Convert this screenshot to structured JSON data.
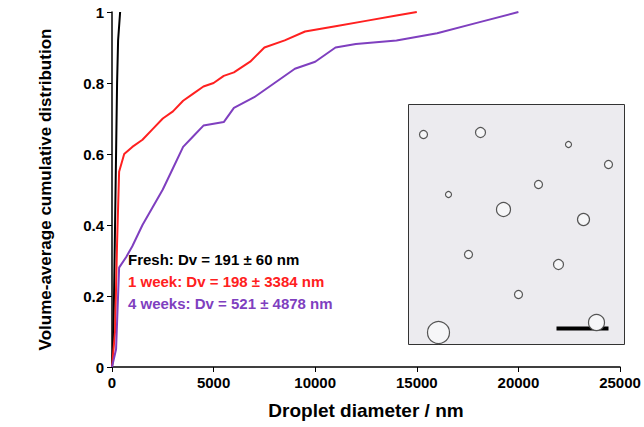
{
  "chart_data": {
    "type": "line",
    "x_label": "Droplet diameter / nm",
    "y_label": "Volume-average cumulative distribution",
    "xlim": [
      0,
      25000
    ],
    "xticks": [
      0,
      5000,
      10000,
      15000,
      20000,
      25000
    ],
    "ylim": [
      0,
      1
    ],
    "yticks": [
      0,
      0.2,
      0.4,
      0.6,
      0.8,
      1
    ],
    "grid": false,
    "series": [
      {
        "annotation": "Fresh: Dv = 191 ± 60 nm",
        "color": "#000000",
        "x": [
          0,
          50,
          100,
          150,
          200,
          250,
          300,
          400
        ],
        "values": [
          0,
          0.05,
          0.2,
          0.4,
          0.6,
          0.8,
          0.92,
          1
        ]
      },
      {
        "annotation": "1 week: Dv = 198 ± 3384 nm",
        "color": "#ff2020",
        "x": [
          0,
          150,
          250,
          350,
          600,
          1000,
          1500,
          2000,
          2500,
          3000,
          3500,
          4000,
          4500,
          5000,
          5500,
          6000,
          6800,
          7500,
          8500,
          9500,
          11000,
          12500,
          14000,
          15000
        ],
        "values": [
          0,
          0.1,
          0.35,
          0.55,
          0.6,
          0.62,
          0.64,
          0.67,
          0.7,
          0.72,
          0.75,
          0.77,
          0.79,
          0.8,
          0.82,
          0.83,
          0.86,
          0.9,
          0.92,
          0.945,
          0.96,
          0.975,
          0.99,
          1
        ]
      },
      {
        "annotation": "4 weeks: Dv = 521 ± 4878 nm",
        "color": "#7f3fbf",
        "x": [
          0,
          200,
          350,
          700,
          1000,
          1500,
          2000,
          2500,
          3000,
          3500,
          4000,
          4500,
          5500,
          6000,
          7000,
          8000,
          9000,
          10000,
          11000,
          12000,
          14000,
          16000,
          18000,
          20000
        ],
        "values": [
          0,
          0.05,
          0.28,
          0.31,
          0.34,
          0.4,
          0.45,
          0.5,
          0.56,
          0.62,
          0.65,
          0.68,
          0.69,
          0.73,
          0.76,
          0.8,
          0.84,
          0.86,
          0.9,
          0.91,
          0.92,
          0.94,
          0.97,
          1
        ]
      }
    ]
  }
}
